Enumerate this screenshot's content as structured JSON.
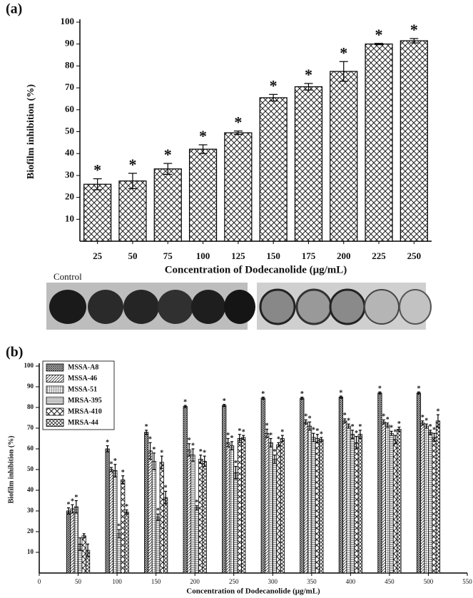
{
  "panel_labels": [
    "(a)",
    "(b)"
  ],
  "photo": {
    "label": "Control"
  },
  "chart_data": [
    {
      "type": "bar",
      "xlabel": "Concentration of Dodecanolide (μg/mL)",
      "ylabel": "Biofilm inhibition (%)",
      "categories": [
        "25",
        "50",
        "75",
        "100",
        "125",
        "150",
        "175",
        "200",
        "225",
        "250"
      ],
      "series": [
        {
          "color": "#000000",
          "pattern": "cross",
          "values": [
            26,
            27.5,
            33,
            42,
            49.5,
            65.5,
            70.5,
            77.5,
            90,
            91.5
          ],
          "errors": [
            2.5,
            3.5,
            2.5,
            2,
            0.8,
            1.5,
            1.5,
            4.5,
            0.3,
            1
          ],
          "markers": [
            "*",
            "*",
            "*",
            "*",
            "*",
            "*",
            "*",
            "*",
            "*",
            "*"
          ]
        }
      ],
      "ylim": [
        0,
        100
      ],
      "yticks": [
        10,
        20,
        30,
        40,
        50,
        60,
        70,
        80,
        90,
        100
      ],
      "grid": false
    },
    {
      "type": "grouped-bar",
      "xlabel": "Concentration of Dodecanolide (μg/mL)",
      "ylabel": "Biofilm inhibition (%)",
      "x": [
        50,
        100,
        150,
        200,
        250,
        300,
        350,
        400,
        450,
        500
      ],
      "series": [
        {
          "name": "MSSA-A8",
          "color": "#000000",
          "pattern": "dense",
          "values": [
            30,
            60,
            68,
            80.5,
            81,
            84.5,
            84.5,
            85,
            87,
            87
          ],
          "errors": [
            1.5,
            1.5,
            1,
            0.5,
            0.5,
            0.5,
            0.5,
            0.5,
            0.5,
            0.5
          ],
          "markers": [
            "*",
            "*",
            "*",
            "*",
            "*",
            "*",
            "*",
            "*",
            "*",
            "*"
          ]
        },
        {
          "name": "MSSA-46",
          "color": "#000000",
          "pattern": "diag",
          "values": [
            31,
            50,
            59,
            59.5,
            63,
            67.5,
            73,
            73.5,
            73,
            72.5
          ],
          "errors": [
            2,
            1,
            4,
            3,
            2,
            2,
            1,
            1,
            1,
            1
          ],
          "markers": [
            "*",
            "*",
            "*",
            "*",
            "*",
            "*",
            "*",
            "*",
            "*",
            "*"
          ]
        },
        {
          "name": "MSSA-51",
          "color": "#000000",
          "pattern": "grid",
          "values": [
            32,
            49.5,
            54,
            57,
            61.5,
            63,
            71,
            71,
            71.5,
            71
          ],
          "errors": [
            3,
            3,
            4,
            3,
            2,
            2,
            2,
            1,
            1,
            1
          ],
          "markers": [
            "*",
            "*",
            "*",
            "*",
            "*",
            "*",
            "*",
            "*",
            "*",
            "*"
          ]
        },
        {
          "name": "MRSA-395",
          "color": "#000000",
          "pattern": "horiz",
          "values": [
            14,
            19,
            27,
            31.5,
            48.5,
            55,
            65.5,
            67,
            67.5,
            68
          ],
          "errors": [
            3,
            2,
            1.5,
            1,
            3,
            2,
            2,
            2,
            1,
            1
          ],
          "markers": [
            null,
            "*",
            "*",
            "*",
            "*",
            "*",
            "*",
            "*",
            "*",
            "*"
          ]
        },
        {
          "name": "MRSA-410",
          "color": "#000000",
          "pattern": "cross",
          "values": [
            18,
            45,
            53.5,
            55,
            65,
            62,
            65,
            63,
            64.5,
            65.5
          ],
          "errors": [
            1,
            2,
            3,
            2,
            2,
            1,
            2,
            3,
            2,
            2
          ],
          "markers": [
            null,
            "*",
            "*",
            "*",
            "*",
            "*",
            "*",
            "*",
            "*",
            "*"
          ]
        },
        {
          "name": "MRSA-44",
          "color": "#000000",
          "pattern": "cross2",
          "values": [
            11,
            29.5,
            36.5,
            54,
            65.5,
            65,
            64.5,
            67,
            69.5,
            73.5
          ],
          "errors": [
            3,
            1,
            3,
            2.5,
            1,
            1.5,
            1,
            2,
            1,
            3
          ],
          "markers": [
            null,
            "*",
            "*",
            "*",
            "*",
            "*",
            "*",
            "*",
            "*",
            "*"
          ]
        }
      ],
      "xlim": [
        0,
        550
      ],
      "xticks": [
        0,
        50,
        100,
        150,
        200,
        250,
        300,
        350,
        400,
        450,
        500,
        550
      ],
      "ylim": [
        0,
        100
      ],
      "yticks": [
        10,
        20,
        30,
        40,
        50,
        60,
        70,
        80,
        90,
        100
      ],
      "grid": false,
      "legend": "top-left"
    }
  ]
}
